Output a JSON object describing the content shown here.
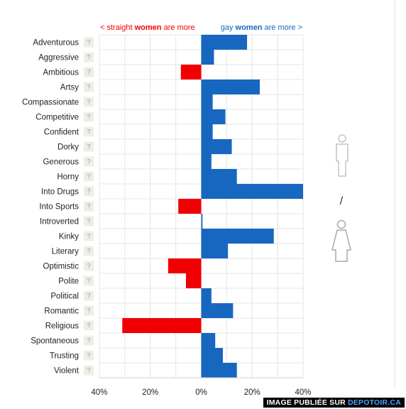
{
  "legend": {
    "left_prefix": "< straight ",
    "left_bold": "women",
    "left_suffix": " are more",
    "right_prefix": "gay ",
    "right_bold": "women",
    "right_suffix": " are more >"
  },
  "question_mark": "?",
  "separator": "/",
  "watermark": {
    "prefix": "IMAGE PUBLIÉE SUR ",
    "site": "DEPOTOIR.CA"
  },
  "colors": {
    "positive": "#1767c0",
    "negative": "#f00000",
    "grid": "#e4e4e4",
    "badge": "#eeeee6"
  },
  "chart_data": {
    "type": "bar",
    "orientation": "horizontal",
    "categories": [
      "Adventurous",
      "Aggressive",
      "Ambitious",
      "Artsy",
      "Compassionate",
      "Competitive",
      "Confident",
      "Dorky",
      "Generous",
      "Horny",
      "Into Drugs",
      "Into Sports",
      "Introverted",
      "Kinky",
      "Literary",
      "Optimistic",
      "Polite",
      "Political",
      "Romantic",
      "Religious",
      "Spontaneous",
      "Trusting",
      "Violent"
    ],
    "values": [
      18,
      5,
      -8,
      23,
      4.5,
      9.5,
      4.5,
      12,
      4,
      14,
      40,
      -9,
      0.5,
      28.5,
      10.5,
      -13,
      -6,
      4,
      12.5,
      -31,
      5.5,
      8.5,
      14
    ],
    "tick_labels": [
      "40%",
      "20%",
      "0%",
      "20%",
      "40%"
    ],
    "xlim": [
      -40,
      40
    ]
  }
}
